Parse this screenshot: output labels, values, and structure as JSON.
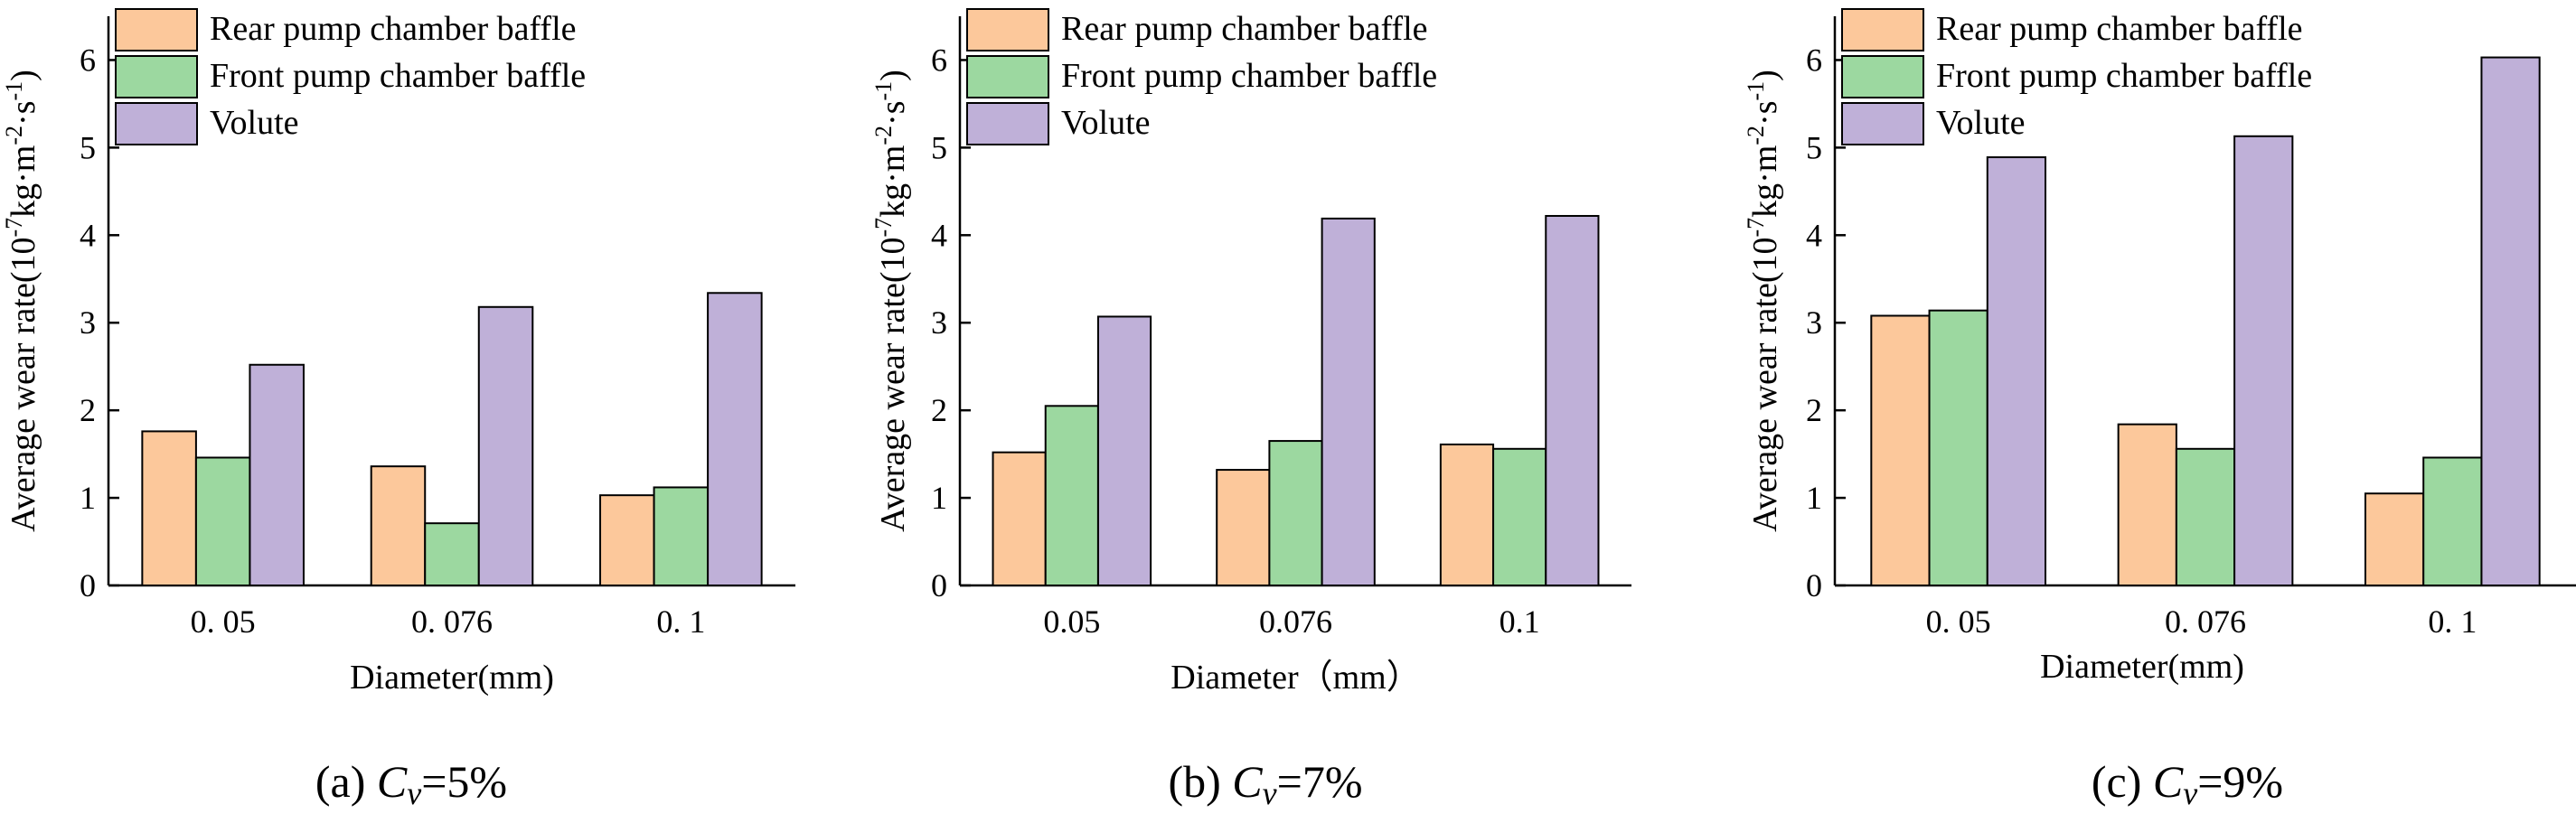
{
  "colors": {
    "rear": "#fcc89b",
    "front": "#9cd8a0",
    "volute": "#bfb0d8",
    "axis": "#000000"
  },
  "legend_labels": [
    "Rear pump chamber baffle",
    "Front pump chamber baffle",
    "Volute"
  ],
  "ylabel_text": "Average wear rate(10",
  "ylabel_exp": "-7",
  "ylabel_unit": "kg·m",
  "ylabel_exp2": "-2",
  "ylabel_dot": "·s",
  "ylabel_exp3": "-1",
  "ylabel_close": ")",
  "chart_data": [
    {
      "type": "bar",
      "caption": "(a) Cv=5%",
      "caption_parts": [
        "(a) ",
        "C",
        "v",
        "=5%"
      ],
      "categories": [
        "0. 05",
        "0. 076",
        "0. 1"
      ],
      "xlabel": "Diameter(mm)",
      "ylabel": "Average wear rate(10-7kg·m-2·s-1)",
      "ylim": [
        0,
        6.5
      ],
      "yticks": [
        0,
        1,
        2,
        3,
        4,
        5,
        6
      ],
      "legend": "top-left",
      "series": [
        {
          "name": "Rear pump chamber baffle",
          "values": [
            1.76,
            1.36,
            1.03
          ]
        },
        {
          "name": "Front pump chamber baffle",
          "values": [
            1.46,
            0.71,
            1.12
          ]
        },
        {
          "name": "Volute",
          "values": [
            2.52,
            3.18,
            3.34
          ]
        }
      ]
    },
    {
      "type": "bar",
      "caption": "(b) Cv=7%",
      "caption_parts": [
        "(b) ",
        "C",
        "v",
        "=7%"
      ],
      "categories": [
        "0.05",
        "0.076",
        "0.1"
      ],
      "xlabel": "Diameter（mm）",
      "ylabel": "Average wear rate(10-7kg·m-2·s-1)",
      "ylim": [
        0,
        6.5
      ],
      "yticks": [
        0,
        1,
        2,
        3,
        4,
        5,
        6
      ],
      "legend": "top-left",
      "series": [
        {
          "name": "Rear pump chamber baffle",
          "values": [
            1.52,
            1.32,
            1.61
          ]
        },
        {
          "name": "Front pump chamber baffle",
          "values": [
            2.05,
            1.65,
            1.56
          ]
        },
        {
          "name": "Volute",
          "values": [
            3.07,
            4.19,
            4.22
          ]
        }
      ]
    },
    {
      "type": "bar",
      "caption": "(c) Cv=9%",
      "caption_parts": [
        "(c) ",
        "C",
        "v",
        "=9%"
      ],
      "categories": [
        "0. 05",
        "0. 076",
        "0. 1"
      ],
      "xlabel": "Diameter(mm)",
      "ylabel": "Average wear rate(10-7kg·m-2·s-1)",
      "ylim": [
        0,
        6.5
      ],
      "yticks": [
        0,
        1,
        2,
        3,
        4,
        5,
        6
      ],
      "legend": "top-left",
      "series": [
        {
          "name": "Rear pump chamber baffle",
          "values": [
            3.08,
            1.84,
            1.05
          ]
        },
        {
          "name": "Front pump chamber baffle",
          "values": [
            3.14,
            1.56,
            1.46
          ]
        },
        {
          "name": "Volute",
          "values": [
            4.89,
            5.13,
            6.03
          ]
        }
      ]
    }
  ]
}
